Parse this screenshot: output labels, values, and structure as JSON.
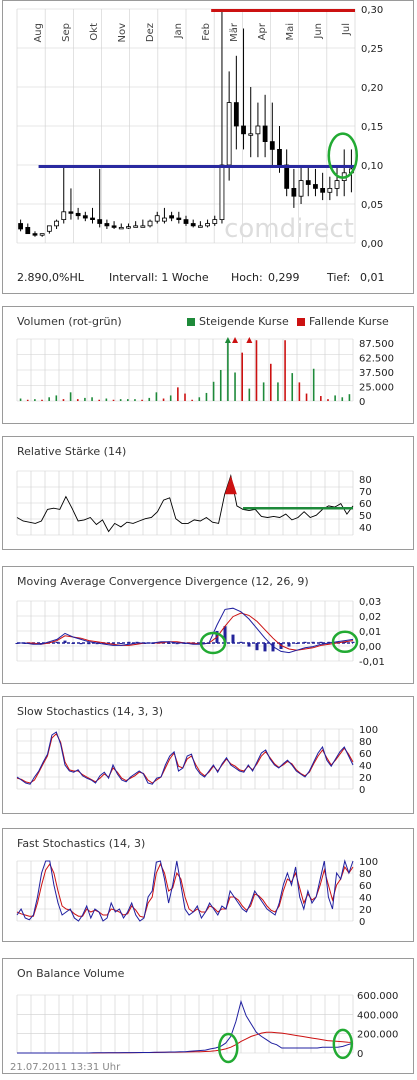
{
  "main_chart": {
    "months": [
      "Aug",
      "Sep",
      "Okt",
      "Nov",
      "Dez",
      "Jan",
      "Feb",
      "Mär",
      "Apr",
      "Mai",
      "Jun",
      "Jul"
    ],
    "yticks": [
      "0,30",
      "0,25",
      "0,20",
      "0,15",
      "0,10",
      "0,05",
      "0,00"
    ],
    "watermark": "comdirect",
    "info": {
      "symbol": "2.890,0%HL",
      "interval": "Intervall: 1 Woche",
      "high_label": "Hoch:",
      "high": "0,299",
      "low_label": "Tief:",
      "low": "0,01"
    }
  },
  "volume": {
    "title": "Volumen (rot-grün)",
    "legend_up": "Steigende Kurse",
    "legend_down": "Fallende Kurse",
    "yticks": [
      "87.500",
      "62.500",
      "37.500",
      "25.000",
      "0"
    ]
  },
  "rsi": {
    "title": "Relative Stärke (14)",
    "yticks": [
      "80",
      "70",
      "60",
      "50",
      "40"
    ]
  },
  "macd": {
    "title": "Moving Average Convergence Divergence (12, 26, 9)",
    "yticks": [
      "0,03",
      "0,02",
      "0,01",
      "0,00",
      "-0,01"
    ]
  },
  "slow_stoch": {
    "title": "Slow Stochastics (14, 3, 3)",
    "yticks": [
      "100",
      "80",
      "60",
      "40",
      "20",
      "0"
    ]
  },
  "fast_stoch": {
    "title": "Fast Stochastics (14, 3)",
    "yticks": [
      "100",
      "80",
      "60",
      "40",
      "20",
      "0"
    ]
  },
  "obv": {
    "title": "On Balance Volume",
    "yticks": [
      "600.000",
      "400.000",
      "200.000",
      "0"
    ]
  },
  "timestamp": "21.07.2011 13:31 Uhr",
  "colors": {
    "blue": "#2a2aa0",
    "red": "#cc1111",
    "green": "#1e8a3a",
    "circle": "#22aa33",
    "grid": "#cfcfcf"
  },
  "chart_data": [
    {
      "type": "candlestick",
      "title": "",
      "ylim": [
        0,
        0.3
      ],
      "categories": [
        "Aug",
        "Aug",
        "Aug",
        "Aug",
        "Sep",
        "Sep",
        "Sep",
        "Sep",
        "Okt",
        "Okt",
        "Okt",
        "Okt",
        "Nov",
        "Nov",
        "Nov",
        "Nov",
        "Dez",
        "Dez",
        "Dez",
        "Dez",
        "Jan",
        "Jan",
        "Jan",
        "Jan",
        "Feb",
        "Feb",
        "Feb",
        "Feb",
        "Mär",
        "Mär",
        "Mär",
        "Mär",
        "Apr",
        "Apr",
        "Apr",
        "Apr",
        "Mai",
        "Mai",
        "Mai",
        "Mai",
        "Jun",
        "Jun",
        "Jun",
        "Jun",
        "Jul",
        "Jul",
        "Jul"
      ],
      "open": [
        0.025,
        0.02,
        0.012,
        0.01,
        0.015,
        0.022,
        0.03,
        0.04,
        0.038,
        0.035,
        0.032,
        0.03,
        0.025,
        0.022,
        0.02,
        0.02,
        0.021,
        0.022,
        0.022,
        0.028,
        0.028,
        0.035,
        0.032,
        0.03,
        0.025,
        0.022,
        0.022,
        0.025,
        0.03,
        0.1,
        0.18,
        0.15,
        0.14,
        0.14,
        0.15,
        0.13,
        0.12,
        0.1,
        0.07,
        0.06,
        0.08,
        0.075,
        0.07,
        0.065,
        0.07,
        0.08,
        0.09
      ],
      "high": [
        0.03,
        0.025,
        0.015,
        0.012,
        0.02,
        0.03,
        0.1,
        0.07,
        0.045,
        0.04,
        0.045,
        0.095,
        0.03,
        0.028,
        0.025,
        0.025,
        0.028,
        0.03,
        0.03,
        0.04,
        0.045,
        0.04,
        0.04,
        0.035,
        0.03,
        0.028,
        0.03,
        0.035,
        0.299,
        0.22,
        0.24,
        0.275,
        0.2,
        0.18,
        0.19,
        0.18,
        0.15,
        0.12,
        0.095,
        0.1,
        0.1,
        0.095,
        0.09,
        0.085,
        0.1,
        0.12,
        0.12
      ],
      "low": [
        0.015,
        0.012,
        0.008,
        0.008,
        0.012,
        0.018,
        0.025,
        0.03,
        0.03,
        0.028,
        0.025,
        0.02,
        0.018,
        0.018,
        0.018,
        0.018,
        0.02,
        0.02,
        0.02,
        0.025,
        0.025,
        0.028,
        0.025,
        0.022,
        0.02,
        0.02,
        0.02,
        0.022,
        0.025,
        0.08,
        0.12,
        0.12,
        0.11,
        0.11,
        0.11,
        0.1,
        0.09,
        0.06,
        0.045,
        0.05,
        0.06,
        0.06,
        0.055,
        0.055,
        0.06,
        0.06,
        0.065
      ],
      "close": [
        0.018,
        0.012,
        0.01,
        0.012,
        0.022,
        0.028,
        0.04,
        0.038,
        0.035,
        0.032,
        0.03,
        0.025,
        0.022,
        0.02,
        0.02,
        0.021,
        0.022,
        0.022,
        0.028,
        0.035,
        0.032,
        0.032,
        0.03,
        0.025,
        0.022,
        0.022,
        0.025,
        0.03,
        0.1,
        0.18,
        0.15,
        0.14,
        0.14,
        0.15,
        0.13,
        0.12,
        0.1,
        0.07,
        0.06,
        0.08,
        0.075,
        0.07,
        0.065,
        0.07,
        0.08,
        0.09,
        0.095
      ],
      "annotations": [
        {
          "kind": "hline",
          "color": "blue",
          "y": 0.098,
          "from": 3,
          "to": 46
        },
        {
          "kind": "hline",
          "color": "red",
          "y": 0.298,
          "from": 27,
          "to": 46
        },
        {
          "kind": "ellipse",
          "color": "circle",
          "x": 44.8,
          "y": 0.112
        }
      ]
    },
    {
      "type": "bar",
      "ylim": [
        0,
        100000
      ],
      "up_flags": [
        1,
        0,
        1,
        0,
        1,
        1,
        0,
        1,
        0,
        1,
        1,
        0,
        1,
        0,
        1,
        1,
        1,
        0,
        1,
        1,
        0,
        1,
        0,
        0,
        0,
        1,
        1,
        1,
        1,
        1,
        1,
        0,
        1,
        0,
        1,
        0,
        1,
        0,
        1,
        0,
        0,
        1,
        0,
        0,
        1,
        1,
        1
      ],
      "values": [
        4000,
        2000,
        3000,
        2000,
        6000,
        9000,
        3000,
        14000,
        3000,
        5000,
        6000,
        2000,
        4000,
        2000,
        3000,
        3000,
        3000,
        2000,
        5000,
        14000,
        4000,
        9000,
        22000,
        12000,
        2000,
        6000,
        13000,
        31000,
        50000,
        98000,
        46000,
        78000,
        20000,
        98000,
        30000,
        60000,
        30000,
        98000,
        45000,
        30000,
        12000,
        52000,
        8000,
        3000,
        9000,
        6000,
        11000
      ],
      "arrows": [
        {
          "x": 29,
          "color": "green"
        },
        {
          "x": 30,
          "color": "red"
        },
        {
          "x": 32,
          "color": "red"
        }
      ],
      "ylabel": ""
    },
    {
      "type": "line",
      "ylim": [
        35,
        90
      ],
      "values": [
        50,
        47,
        46,
        45,
        47,
        57,
        58,
        57,
        68,
        58,
        47,
        48,
        50,
        44,
        48,
        38,
        45,
        42,
        46,
        45,
        47,
        49,
        50,
        55,
        65,
        67,
        49,
        45,
        45,
        48,
        47,
        50,
        46,
        45,
        70,
        86,
        60,
        57,
        56,
        57,
        51,
        50,
        51,
        50,
        53,
        48,
        50,
        55,
        50,
        52,
        57,
        60,
        59,
        62,
        53,
        60
      ],
      "guide": {
        "y": 58,
        "from": 37,
        "to": 55
      }
    },
    {
      "type": "line",
      "ylim": [
        -0.015,
        0.035
      ],
      "macd": [
        0.0,
        0.0,
        -0.001,
        -0.001,
        0.001,
        0.003,
        0.008,
        0.005,
        0.003,
        0.001,
        0.0,
        -0.001,
        -0.002,
        -0.002,
        -0.001,
        0.0,
        0.0,
        0.0,
        0.001,
        0.001,
        0.0,
        0.0,
        -0.001,
        -0.001,
        0.0,
        0.015,
        0.028,
        0.029,
        0.026,
        0.02,
        0.012,
        0.004,
        -0.003,
        -0.007,
        -0.008,
        -0.006,
        -0.004,
        -0.003,
        -0.001,
        0.0,
        0.001,
        0.002,
        0.003
      ],
      "signal": [
        0.0,
        0.0,
        0.0,
        -0.001,
        0.0,
        0.002,
        0.006,
        0.005,
        0.004,
        0.002,
        0.001,
        0.0,
        -0.001,
        -0.002,
        -0.002,
        -0.001,
        0.0,
        0.0,
        0.0,
        0.001,
        0.001,
        0.0,
        0.0,
        -0.001,
        0.0,
        0.005,
        0.014,
        0.022,
        0.025,
        0.023,
        0.018,
        0.011,
        0.004,
        -0.002,
        -0.005,
        -0.006,
        -0.005,
        -0.004,
        -0.002,
        -0.001,
        0.0,
        0.001,
        0.002
      ],
      "ellipses": [
        {
          "x": 24.5,
          "y": 0.0
        },
        {
          "x": 41.0,
          "y": 0.001
        }
      ]
    },
    {
      "type": "line",
      "ylim": [
        0,
        100
      ],
      "k": [
        20,
        15,
        10,
        8,
        20,
        30,
        45,
        58,
        90,
        95,
        75,
        40,
        30,
        28,
        32,
        22,
        18,
        15,
        10,
        22,
        28,
        18,
        40,
        25,
        15,
        12,
        20,
        25,
        30,
        25,
        10,
        8,
        18,
        20,
        40,
        55,
        62,
        30,
        35,
        55,
        58,
        35,
        25,
        20,
        30,
        40,
        28,
        42,
        52,
        40,
        35,
        30,
        28,
        40,
        30,
        45,
        60,
        65,
        50,
        40,
        35,
        42,
        48,
        40,
        30,
        25,
        20,
        30,
        45,
        60,
        70,
        48,
        38,
        50,
        62,
        70,
        55,
        40
      ],
      "d": [
        18,
        16,
        12,
        10,
        15,
        28,
        42,
        55,
        85,
        92,
        78,
        45,
        32,
        30,
        30,
        24,
        20,
        16,
        12,
        18,
        25,
        20,
        35,
        28,
        18,
        14,
        18,
        22,
        28,
        26,
        15,
        10,
        15,
        20,
        35,
        50,
        60,
        38,
        35,
        50,
        55,
        40,
        28,
        22,
        28,
        38,
        30,
        40,
        50,
        42,
        38,
        32,
        30,
        38,
        32,
        42,
        55,
        62,
        52,
        42,
        36,
        40,
        46,
        42,
        32,
        26,
        22,
        28,
        42,
        55,
        65,
        52,
        40,
        48,
        58,
        68,
        58,
        45
      ]
    },
    {
      "type": "line",
      "ylim": [
        0,
        100
      ],
      "k": [
        10,
        20,
        5,
        2,
        10,
        40,
        80,
        100,
        100,
        60,
        30,
        10,
        15,
        20,
        5,
        0,
        10,
        25,
        5,
        20,
        15,
        0,
        5,
        30,
        15,
        20,
        5,
        15,
        30,
        10,
        0,
        5,
        40,
        50,
        98,
        100,
        70,
        30,
        60,
        100,
        60,
        20,
        10,
        15,
        25,
        5,
        15,
        30,
        20,
        10,
        25,
        20,
        50,
        40,
        30,
        20,
        15,
        30,
        50,
        40,
        30,
        20,
        15,
        10,
        30,
        60,
        80,
        60,
        90,
        40,
        20,
        50,
        30,
        40,
        70,
        100,
        40,
        20,
        80,
        70,
        100,
        80,
        100
      ],
      "d": [
        15,
        12,
        10,
        8,
        8,
        30,
        60,
        85,
        95,
        80,
        50,
        25,
        20,
        18,
        12,
        8,
        8,
        20,
        15,
        18,
        15,
        10,
        10,
        20,
        18,
        15,
        10,
        12,
        25,
        18,
        8,
        6,
        30,
        40,
        80,
        95,
        80,
        50,
        55,
        80,
        70,
        40,
        20,
        15,
        20,
        15,
        15,
        25,
        22,
        15,
        20,
        20,
        40,
        40,
        35,
        25,
        18,
        25,
        45,
        42,
        35,
        25,
        18,
        15,
        25,
        50,
        70,
        65,
        80,
        55,
        30,
        45,
        35,
        40,
        60,
        85,
        60,
        35,
        60,
        70,
        90,
        80,
        90
      ]
    },
    {
      "type": "line",
      "ylim": [
        0,
        700000
      ],
      "obv": [
        0,
        0,
        0,
        0,
        0,
        0,
        0,
        0,
        0,
        0,
        0,
        0,
        0,
        0,
        0,
        2000,
        3000,
        3000,
        4000,
        4000,
        4000,
        5000,
        5000,
        5000,
        6000,
        6000,
        6000,
        8000,
        8000,
        10000,
        12000,
        12000,
        14000,
        16000,
        20000,
        25000,
        30000,
        35000,
        50000,
        60000,
        80000,
        120000,
        200000,
        380000,
        620000,
        450000,
        350000,
        250000,
        200000,
        160000,
        120000,
        100000,
        60000,
        60000,
        60000,
        60000,
        60000,
        60000,
        60000,
        60000,
        70000,
        70000,
        70000,
        70000,
        80000,
        100000,
        120000
      ],
      "ma": [
        0,
        0,
        0,
        0,
        0,
        0,
        0,
        0,
        0,
        0,
        0,
        0,
        0,
        0,
        0,
        0,
        1000,
        1500,
        2000,
        2500,
        3000,
        3500,
        4000,
        4500,
        5000,
        5500,
        6000,
        6500,
        7000,
        8000,
        9000,
        10000,
        11000,
        12000,
        13000,
        14000,
        16000,
        18000,
        22000,
        28000,
        36000,
        50000,
        70000,
        100000,
        140000,
        170000,
        200000,
        220000,
        240000,
        250000,
        250000,
        245000,
        240000,
        230000,
        220000,
        210000,
        200000,
        190000,
        180000,
        170000,
        160000,
        150000,
        145000,
        140000,
        135000,
        130000,
        128000
      ],
      "ellipses": [
        {
          "x": 41.5,
          "y": 60000
        },
        {
          "x": 64.0,
          "y": 110000
        }
      ]
    }
  ]
}
